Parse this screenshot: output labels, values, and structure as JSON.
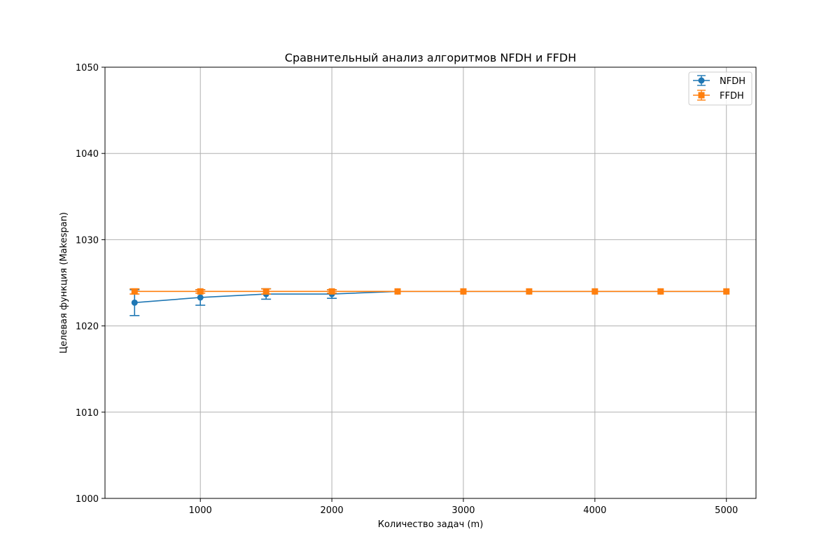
{
  "chart_data": {
    "type": "line",
    "title": "Сравнительный анализ алгоритмов NFDH и FFDH",
    "xlabel": "Количество задач (m)",
    "ylabel": "Целевая функция (Makespan)",
    "xlim": [
      275,
      5225
    ],
    "ylim": [
      1000,
      1050
    ],
    "x_ticks": [
      1000,
      2000,
      3000,
      4000,
      5000
    ],
    "y_ticks": [
      1000,
      1010,
      1020,
      1030,
      1040,
      1050
    ],
    "grid": true,
    "legend_position": "top-right",
    "x": [
      500,
      1000,
      1500,
      2000,
      2500,
      3000,
      3500,
      4000,
      4500,
      5000
    ],
    "series": [
      {
        "name": "NFDH",
        "color": "#1f77b4",
        "marker": "circle",
        "values": [
          1022.7,
          1023.3,
          1023.7,
          1023.7,
          1024,
          1024,
          1024,
          1024,
          1024,
          1024
        ],
        "errors": [
          1.5,
          0.9,
          0.6,
          0.5,
          0,
          0,
          0,
          0,
          0,
          0
        ]
      },
      {
        "name": "FFDH",
        "color": "#ff7f0e",
        "marker": "square",
        "values": [
          1024,
          1024,
          1024,
          1024,
          1024,
          1024,
          1024,
          1024,
          1024,
          1024
        ],
        "errors": [
          0.3,
          0.2,
          0.3,
          0.2,
          0,
          0,
          0,
          0,
          0,
          0
        ]
      }
    ]
  }
}
